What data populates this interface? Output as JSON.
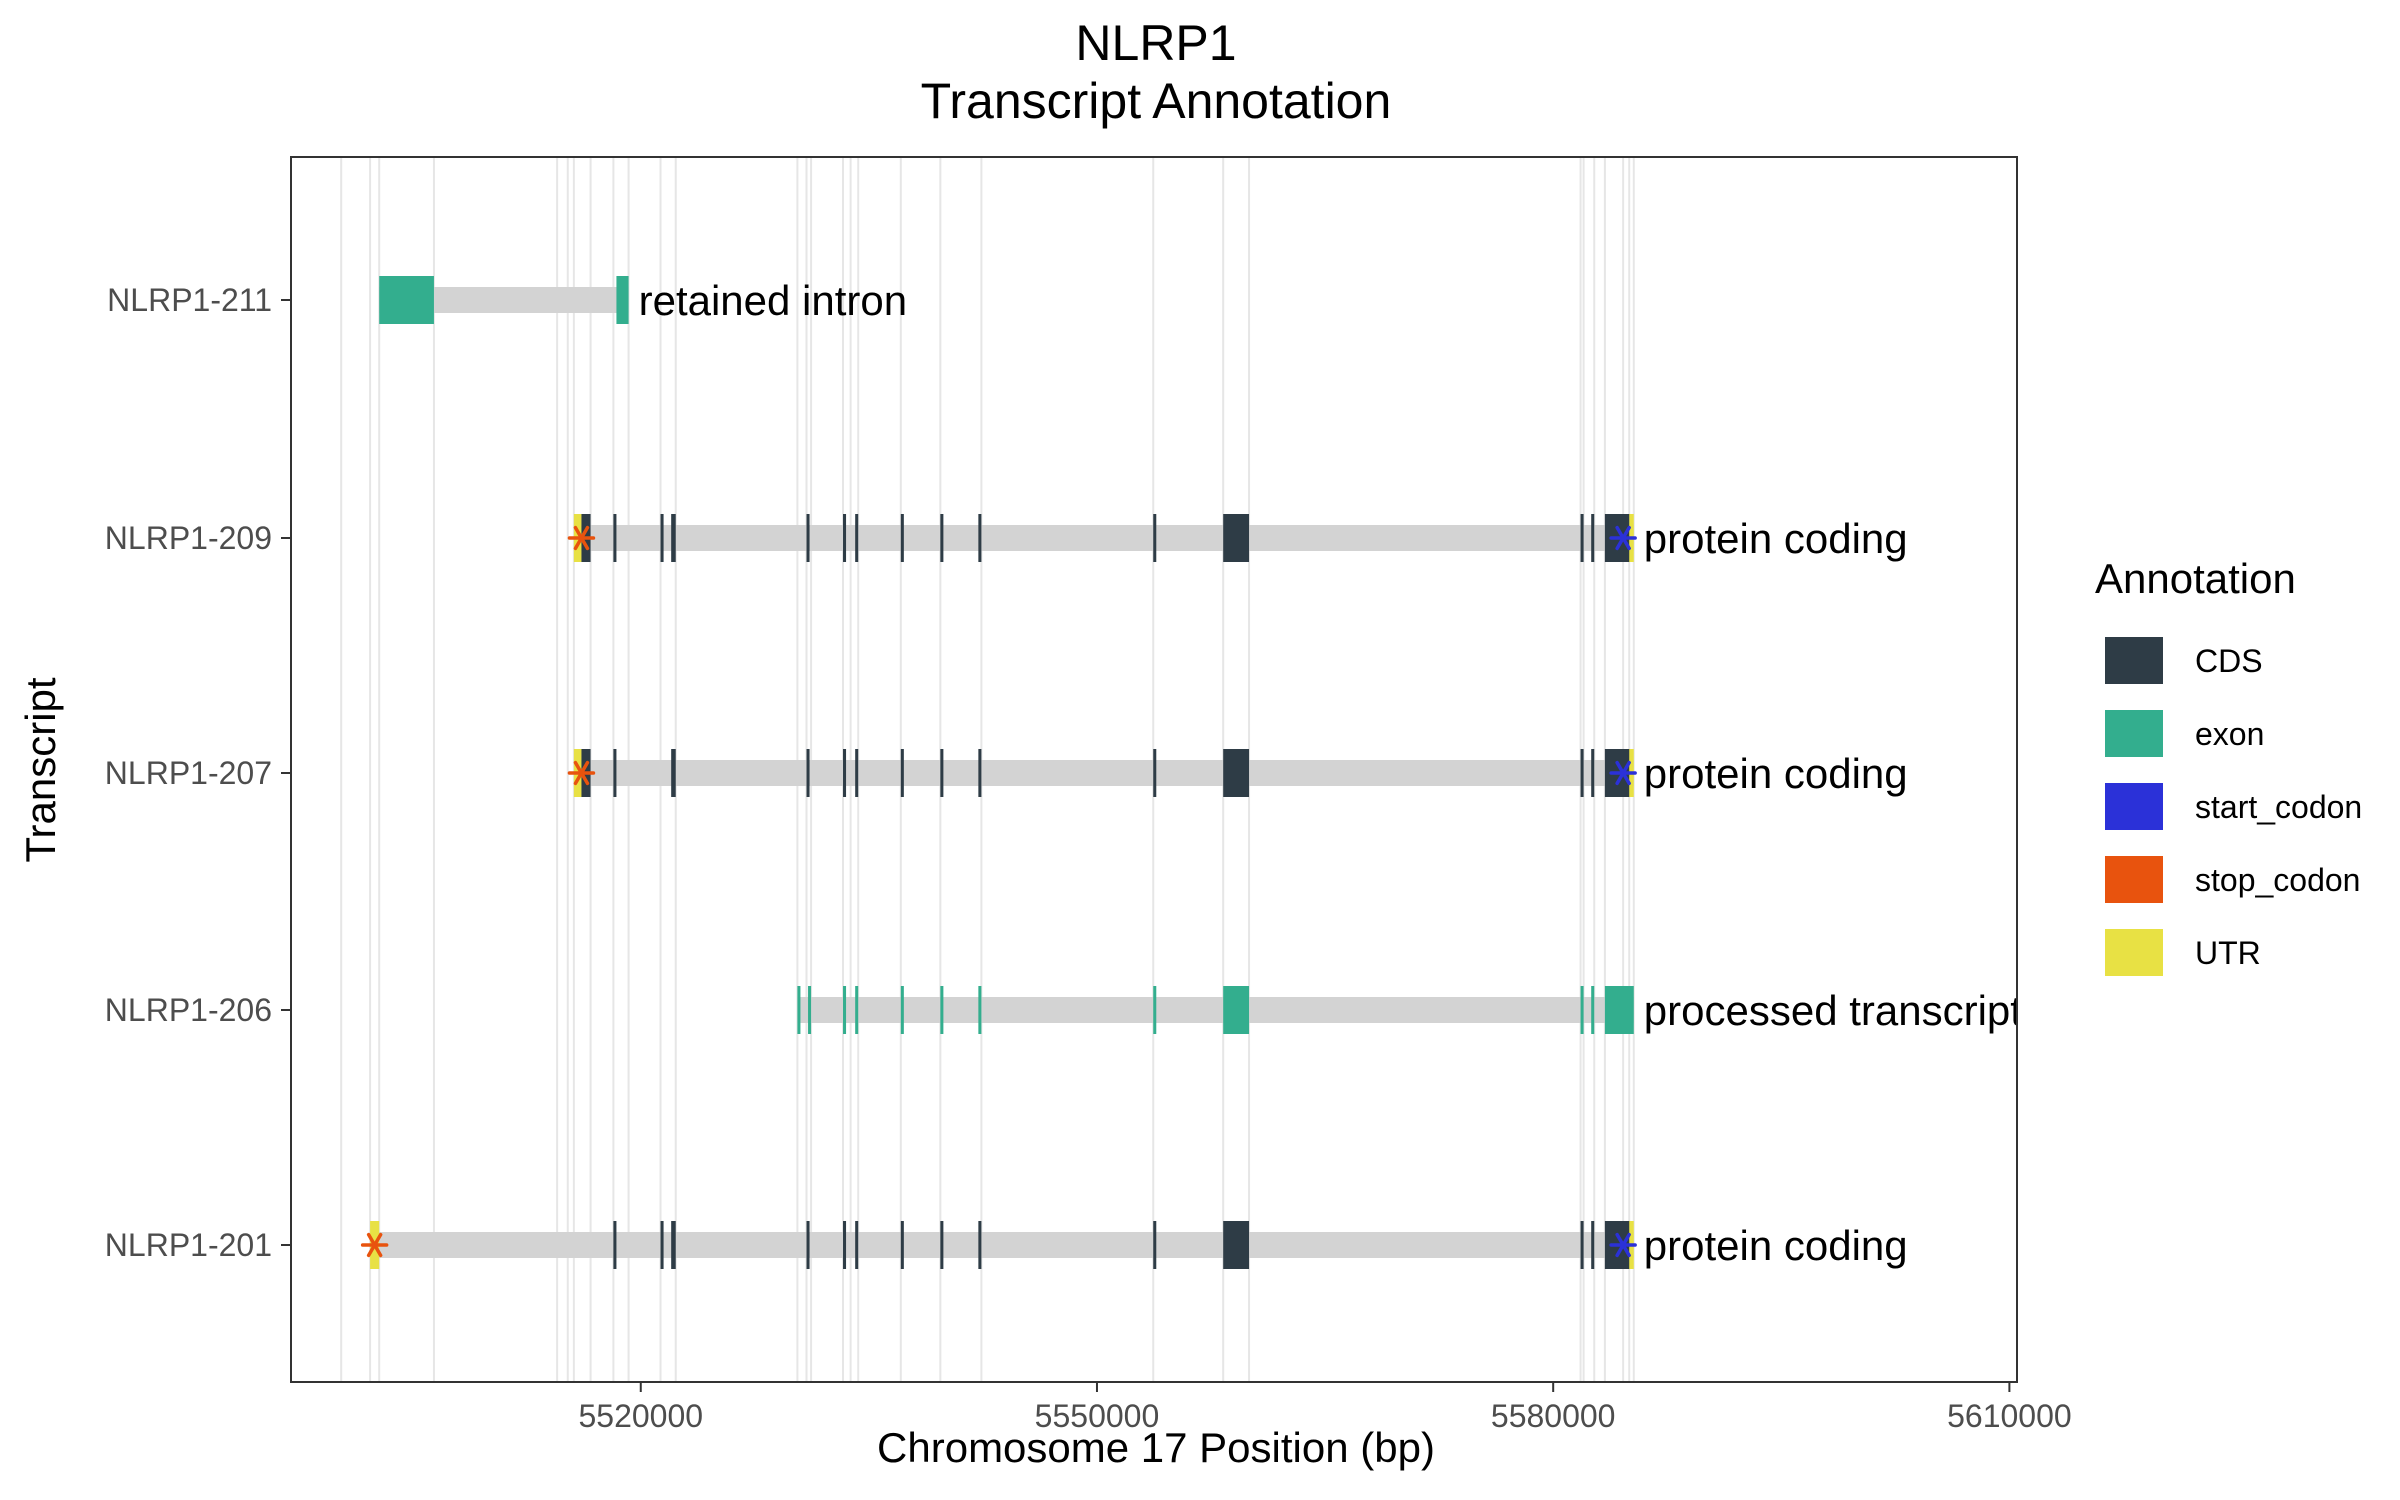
{
  "chart_data": {
    "type": "gene-structure",
    "title": "NLRP1",
    "subtitle": "Transcript Annotation",
    "xlabel": "Chromosome 17 Position (bp)",
    "ylabel": "Transcript",
    "xlim": [
      5497000,
      5610500
    ],
    "x_ticks": [
      5520000,
      5550000,
      5580000,
      5610000
    ],
    "x_tick_labels": [
      "5520000",
      "5550000",
      "5580000",
      "5610000"
    ],
    "grid": "vertical lines at exon boundaries",
    "legend": {
      "title": "Annotation",
      "position": "right",
      "items": [
        {
          "label": "CDS",
          "color": "#2e3c46"
        },
        {
          "label": "exon",
          "color": "#33ae8e"
        },
        {
          "label": "start_codon",
          "color": "#2b31d8"
        },
        {
          "label": "stop_codon",
          "color": "#e8530e"
        },
        {
          "label": "UTR",
          "color": "#e8e144"
        }
      ]
    },
    "transcripts": [
      {
        "name": "NLRP1-211",
        "biotype_label": "retained intron",
        "start": 5502800,
        "end": 5519200,
        "exons": [
          [
            5502800,
            5506400
          ],
          [
            5518400,
            5519200
          ]
        ],
        "cds": [],
        "utr": [],
        "start_codon": null,
        "stop_codon": null
      },
      {
        "name": "NLRP1-209",
        "biotype_label": "protein coding",
        "start": 5515600,
        "end": 5585300,
        "exons": [],
        "cds": [
          [
            5516100,
            5516700
          ],
          [
            5518200,
            5518400
          ],
          [
            5521300,
            5521500
          ],
          [
            5522000,
            5522300
          ],
          [
            5530900,
            5531100
          ],
          [
            5533300,
            5533500
          ],
          [
            5534100,
            5534300
          ],
          [
            5537100,
            5537300
          ],
          [
            5539700,
            5539900
          ],
          [
            5542200,
            5542400
          ],
          [
            5553700,
            5553900
          ],
          [
            5558300,
            5560000
          ],
          [
            5581800,
            5582000
          ],
          [
            5582500,
            5582700
          ],
          [
            5583400,
            5585000
          ]
        ],
        "utr": [
          [
            5515600,
            5516100
          ],
          [
            5584800,
            5585300
          ]
        ],
        "start_codon": 5584600,
        "stop_codon": 5516100
      },
      {
        "name": "NLRP1-207",
        "biotype_label": "protein coding",
        "start": 5515600,
        "end": 5585300,
        "exons": [],
        "cds": [
          [
            5516100,
            5516700
          ],
          [
            5518200,
            5518400
          ],
          [
            5522000,
            5522300
          ],
          [
            5530900,
            5531100
          ],
          [
            5533300,
            5533500
          ],
          [
            5534100,
            5534300
          ],
          [
            5537100,
            5537300
          ],
          [
            5539700,
            5539900
          ],
          [
            5542200,
            5542400
          ],
          [
            5553700,
            5553900
          ],
          [
            5558300,
            5560000
          ],
          [
            5581800,
            5582000
          ],
          [
            5582500,
            5582700
          ],
          [
            5583400,
            5585000
          ]
        ],
        "utr": [
          [
            5515600,
            5516100
          ],
          [
            5584800,
            5585300
          ]
        ],
        "start_codon": 5584600,
        "stop_codon": 5516100
      },
      {
        "name": "NLRP1-206",
        "biotype_label": "processed transcript",
        "start": 5530300,
        "end": 5585300,
        "exons": [
          [
            5530300,
            5530500
          ],
          [
            5531000,
            5531200
          ],
          [
            5533300,
            5533500
          ],
          [
            5534100,
            5534300
          ],
          [
            5537100,
            5537300
          ],
          [
            5539700,
            5539900
          ],
          [
            5542200,
            5542400
          ],
          [
            5553700,
            5553900
          ],
          [
            5558300,
            5560000
          ],
          [
            5581800,
            5582000
          ],
          [
            5582500,
            5582700
          ],
          [
            5583400,
            5585300
          ]
        ],
        "cds": [],
        "utr": [],
        "start_codon": null,
        "stop_codon": null
      },
      {
        "name": "NLRP1-201",
        "biotype_label": "protein coding",
        "start": 5502200,
        "end": 5585300,
        "exons": [],
        "cds": [
          [
            5518200,
            5518400
          ],
          [
            5521300,
            5521500
          ],
          [
            5522000,
            5522300
          ],
          [
            5530900,
            5531100
          ],
          [
            5533300,
            5533500
          ],
          [
            5534100,
            5534300
          ],
          [
            5537100,
            5537300
          ],
          [
            5539700,
            5539900
          ],
          [
            5542200,
            5542400
          ],
          [
            5553700,
            5553900
          ],
          [
            5558300,
            5560000
          ],
          [
            5581800,
            5582000
          ],
          [
            5582500,
            5582700
          ],
          [
            5583400,
            5585000
          ]
        ],
        "utr": [
          [
            5502200,
            5502800
          ],
          [
            5584800,
            5585300
          ]
        ],
        "start_codon": 5584600,
        "stop_codon": 5502500
      }
    ],
    "boundary_lines": [
      5500300,
      5502200,
      5502800,
      5506400,
      5514500,
      5515200,
      5515600,
      5516700,
      5518200,
      5519200,
      5521300,
      5522300,
      5530300,
      5530900,
      5531200,
      5533300,
      5533800,
      5534300,
      5537100,
      5539700,
      5542400,
      5553700,
      5558300,
      5560000,
      5581800,
      5582000,
      5582700,
      5583400,
      5584600,
      5585000,
      5585300
    ]
  }
}
